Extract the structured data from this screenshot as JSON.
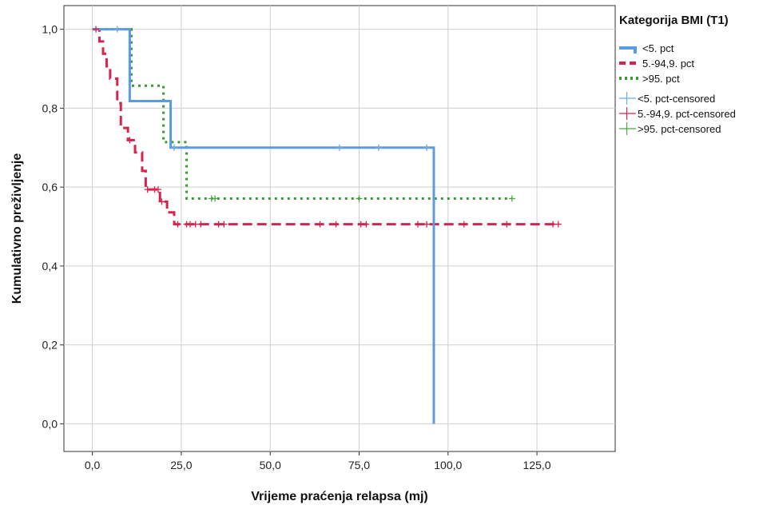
{
  "chart_data": {
    "type": "line",
    "step": true,
    "title": "",
    "xlabel": "Vrijeme praćenja relapsa (mj)",
    "ylabel": "Kumulativno preživljenje",
    "xlim": [
      -8,
      147
    ],
    "ylim": [
      -0.07,
      1.06
    ],
    "x_ticks": [
      0,
      25,
      50,
      75,
      100,
      125
    ],
    "x_tick_labels": [
      "0,0",
      "25,0",
      "50,0",
      "75,0",
      "100,0",
      "125,0"
    ],
    "y_ticks": [
      0,
      0.2,
      0.4,
      0.6,
      0.8,
      1.0
    ],
    "y_tick_labels": [
      "0,0",
      "0,2",
      "0,4",
      "0,6",
      "0,8",
      "1,0"
    ],
    "grid": true,
    "legend_title": "Kategorija BMI (T1)",
    "legend_position": "right",
    "series": [
      {
        "name": "<5. pct",
        "censored_name": "<5. pct-censored",
        "color": "#5b9bdf",
        "line_style": "solid",
        "censor_color": "#6fa8e8",
        "steps": [
          [
            0,
            1.0
          ],
          [
            10.5,
            0.818
          ],
          [
            22,
            0.7
          ],
          [
            96,
            0.0
          ]
        ],
        "end_x": 96,
        "censored": [
          [
            7,
            1.0
          ],
          [
            23,
            0.7
          ],
          [
            69.5,
            0.7
          ],
          [
            80.5,
            0.7
          ],
          [
            94,
            0.7
          ]
        ]
      },
      {
        "name": "5.-94,9. pct",
        "censored_name": "5.-94,9. pct-censored",
        "color": "#d6244c",
        "line_style": "dashed",
        "censor_color": "#d6244c",
        "steps": [
          [
            0,
            1.0
          ],
          [
            2,
            0.969
          ],
          [
            3,
            0.938
          ],
          [
            4,
            0.906
          ],
          [
            5,
            0.875
          ],
          [
            7,
            0.813
          ],
          [
            8,
            0.75
          ],
          [
            10,
            0.719
          ],
          [
            12,
            0.688
          ],
          [
            14,
            0.641
          ],
          [
            15,
            0.594
          ],
          [
            19,
            0.563
          ],
          [
            21,
            0.536
          ],
          [
            23,
            0.506
          ]
        ],
        "end_x": 131,
        "censored": [
          [
            1,
            1.0
          ],
          [
            10.5,
            0.719
          ],
          [
            15.5,
            0.594
          ],
          [
            17.5,
            0.594
          ],
          [
            18.5,
            0.594
          ],
          [
            19.5,
            0.563
          ],
          [
            24,
            0.506
          ],
          [
            26.5,
            0.506
          ],
          [
            27.5,
            0.506
          ],
          [
            29,
            0.506
          ],
          [
            30.5,
            0.506
          ],
          [
            35.5,
            0.506
          ],
          [
            37,
            0.506
          ],
          [
            64,
            0.506
          ],
          [
            68.5,
            0.506
          ],
          [
            75.5,
            0.506
          ],
          [
            77,
            0.506
          ],
          [
            91.5,
            0.506
          ],
          [
            94,
            0.506
          ],
          [
            104.5,
            0.506
          ],
          [
            116.5,
            0.506
          ],
          [
            129.5,
            0.506
          ],
          [
            131,
            0.506
          ]
        ]
      },
      {
        "name": ">95. pct",
        "censored_name": ">95. pct-censored",
        "color": "#3b9a37",
        "line_style": "dotted",
        "censor_color": "#4aa944",
        "steps": [
          [
            0,
            1.0
          ],
          [
            11,
            0.857
          ],
          [
            20,
            0.714
          ],
          [
            26.5,
            0.571
          ]
        ],
        "end_x": 118,
        "censored": [
          [
            33.5,
            0.571
          ],
          [
            34.5,
            0.571
          ],
          [
            75,
            0.571
          ],
          [
            118,
            0.571
          ]
        ]
      }
    ]
  }
}
